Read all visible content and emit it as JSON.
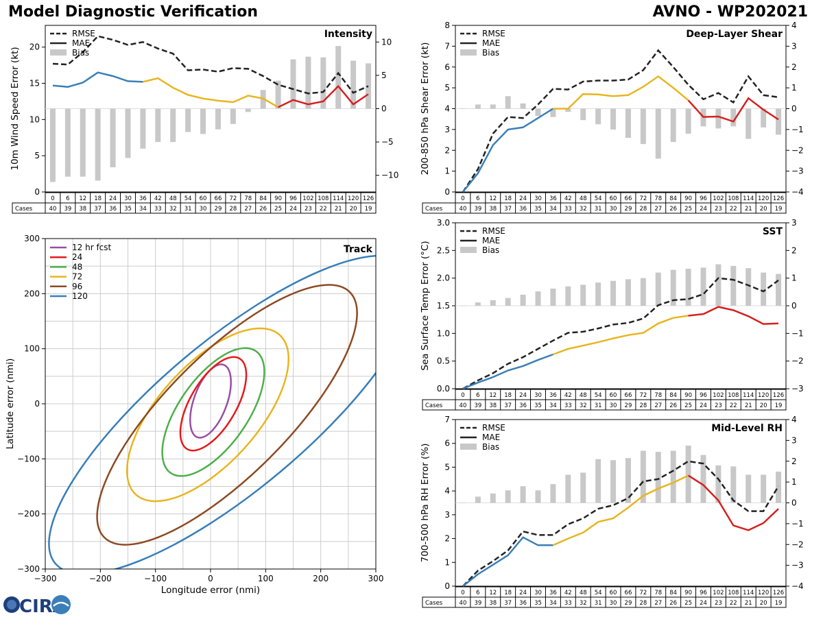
{
  "header": {
    "title": "Model Diagnostic Verification",
    "storm": "AVNO - WP202021"
  },
  "logo": {
    "text": "CIRA"
  },
  "colors": {
    "rmse": "#222222",
    "bias": "#c8c8c8",
    "mae_segments": [
      "#3a7fb7",
      "#e8b520",
      "#d62020"
    ],
    "track": [
      "#984ea3",
      "#e41a1c",
      "#4daf4a",
      "#e8b520",
      "#8c4a22",
      "#377eb8"
    ]
  },
  "cases_label": "Cases",
  "legend_labels": {
    "rmse": "RMSE",
    "mae": "MAE",
    "bias": "Bias"
  },
  "chart_data": [
    {
      "id": "intensity",
      "type": "line",
      "title": "Intensity",
      "ylabel": "10m Wind Speed Error (kt)",
      "ylim": [
        0,
        23
      ],
      "yticks": [
        0,
        5,
        10,
        15,
        20
      ],
      "y2lim": [
        -12.5,
        12.5
      ],
      "y2ticks": [
        -10,
        -5,
        0,
        5,
        10
      ],
      "y2ticklabels": [
        "−10",
        "−5",
        "0",
        "5",
        "10"
      ],
      "x": [
        0,
        6,
        12,
        18,
        24,
        30,
        36,
        42,
        48,
        54,
        60,
        66,
        72,
        78,
        84,
        90,
        96,
        102,
        108,
        114,
        120,
        126
      ],
      "cases": [
        40,
        39,
        38,
        37,
        36,
        35,
        34,
        33,
        32,
        31,
        30,
        29,
        28,
        27,
        26,
        25,
        24,
        23,
        22,
        21,
        20,
        19
      ],
      "series": [
        {
          "name": "RMSE",
          "values": [
            17.7,
            17.6,
            19.3,
            21.5,
            21.0,
            20.3,
            20.7,
            19.8,
            19.1,
            16.8,
            16.9,
            16.6,
            17.1,
            17.0,
            16.0,
            14.8,
            14.2,
            13.6,
            13.8,
            16.4,
            13.7,
            14.6
          ]
        },
        {
          "name": "MAE",
          "values": [
            14.7,
            14.5,
            15.1,
            16.5,
            16.0,
            15.3,
            15.2,
            15.7,
            14.4,
            13.4,
            12.9,
            12.6,
            12.4,
            13.3,
            12.9,
            11.7,
            12.7,
            12.1,
            12.5,
            14.6,
            12.1,
            13.5
          ],
          "color_breaks": [
            36,
            90
          ]
        },
        {
          "name": "Bias",
          "values": [
            -11.0,
            -10.2,
            -10.2,
            -10.8,
            -8.8,
            -7.4,
            -6.0,
            -5.0,
            -5.0,
            -3.5,
            -3.8,
            -3.1,
            -2.3,
            -0.5,
            2.8,
            4.2,
            7.4,
            7.8,
            7.7,
            9.4,
            7.2,
            6.8
          ]
        }
      ]
    },
    {
      "id": "shear",
      "type": "line",
      "title": "Deep-Layer Shear",
      "ylabel": "200-850 hPa Shear Error (kt)",
      "ylim": [
        0,
        8
      ],
      "yticks": [
        0,
        1,
        2,
        3,
        4,
        5,
        6,
        7,
        8
      ],
      "y2lim": [
        -4,
        4
      ],
      "y2ticks": [
        -4,
        -3,
        -2,
        -1,
        0,
        1,
        2,
        3,
        4
      ],
      "y2ticklabels": [
        "−4",
        "−3",
        "−2",
        "−1",
        "0",
        "1",
        "2",
        "3",
        "4"
      ],
      "x": [
        0,
        6,
        12,
        18,
        24,
        30,
        36,
        42,
        48,
        54,
        60,
        66,
        72,
        78,
        84,
        90,
        96,
        102,
        108,
        114,
        120,
        126
      ],
      "cases": [
        40,
        39,
        38,
        37,
        36,
        35,
        34,
        33,
        32,
        31,
        30,
        29,
        28,
        27,
        26,
        25,
        24,
        23,
        22,
        21,
        20,
        19
      ],
      "series": [
        {
          "name": "RMSE",
          "values": [
            0.0,
            1.1,
            2.8,
            3.6,
            3.55,
            4.2,
            4.95,
            4.92,
            5.3,
            5.35,
            5.35,
            5.4,
            5.85,
            6.8,
            6.0,
            5.15,
            4.45,
            4.75,
            4.3,
            5.55,
            4.65,
            4.55
          ]
        },
        {
          "name": "MAE",
          "values": [
            0.0,
            0.9,
            2.25,
            3.0,
            3.1,
            3.55,
            4.0,
            4.0,
            4.7,
            4.68,
            4.6,
            4.65,
            5.05,
            5.55,
            5.0,
            4.4,
            3.6,
            3.62,
            3.38,
            4.5,
            3.95,
            3.48
          ],
          "color_breaks": [
            36,
            90
          ]
        },
        {
          "name": "Bias",
          "values": [
            0,
            0.2,
            0.2,
            0.6,
            0.25,
            -0.35,
            -0.4,
            -0.15,
            -0.55,
            -0.75,
            -1.0,
            -1.4,
            -1.7,
            -2.4,
            -1.6,
            -1.2,
            -0.85,
            -0.95,
            -0.85,
            -1.45,
            -0.9,
            -1.25
          ]
        }
      ]
    },
    {
      "id": "sst",
      "type": "line",
      "title": "SST",
      "ylabel": "Sea Surface Temp Error (°C)",
      "ylim": [
        0,
        3
      ],
      "yticks": [
        0.0,
        0.5,
        1.0,
        1.5,
        2.0,
        2.5,
        3.0
      ],
      "yticklabels": [
        "0.0",
        "0.5",
        "1.0",
        "1.5",
        "2.0",
        "2.5",
        "3.0"
      ],
      "y2lim": [
        -3,
        3
      ],
      "y2ticks": [
        -3,
        -2,
        -1,
        0,
        1,
        2,
        3
      ],
      "y2ticklabels": [
        "−3",
        "−2",
        "−1",
        "0",
        "1",
        "2",
        "3"
      ],
      "x": [
        0,
        6,
        12,
        18,
        24,
        30,
        36,
        42,
        48,
        54,
        60,
        66,
        72,
        78,
        84,
        90,
        96,
        102,
        108,
        114,
        120,
        126
      ],
      "cases": [
        40,
        39,
        38,
        37,
        36,
        35,
        34,
        33,
        32,
        31,
        30,
        29,
        28,
        27,
        26,
        25,
        24,
        23,
        22,
        21,
        20,
        19
      ],
      "series": [
        {
          "name": "RMSE",
          "values": [
            0.0,
            0.15,
            0.28,
            0.45,
            0.57,
            0.72,
            0.87,
            1.01,
            1.03,
            1.09,
            1.16,
            1.19,
            1.27,
            1.51,
            1.6,
            1.62,
            1.71,
            2.0,
            1.97,
            1.87,
            1.76,
            1.96
          ]
        },
        {
          "name": "MAE",
          "values": [
            0.0,
            0.11,
            0.21,
            0.33,
            0.41,
            0.52,
            0.62,
            0.72,
            0.78,
            0.84,
            0.91,
            0.97,
            1.01,
            1.18,
            1.28,
            1.32,
            1.35,
            1.48,
            1.42,
            1.31,
            1.17,
            1.18
          ],
          "color_breaks": [
            36,
            90
          ]
        },
        {
          "name": "Bias",
          "values": [
            0,
            0.12,
            0.2,
            0.28,
            0.4,
            0.52,
            0.62,
            0.7,
            0.76,
            0.84,
            0.9,
            0.96,
            1.0,
            1.2,
            1.3,
            1.34,
            1.38,
            1.5,
            1.44,
            1.36,
            1.2,
            1.15
          ]
        }
      ]
    },
    {
      "id": "rh",
      "type": "line",
      "title": "Mid-Level RH",
      "ylabel": "700-500 hPa RH Error (%)",
      "ylim": [
        0,
        7
      ],
      "yticks": [
        0,
        1,
        2,
        3,
        4,
        5,
        6,
        7
      ],
      "y2lim": [
        -4,
        4
      ],
      "y2ticks": [
        -4,
        -3,
        -2,
        -1,
        0,
        1,
        2,
        3,
        4
      ],
      "y2ticklabels": [
        "−4",
        "−3",
        "−2",
        "−1",
        "0",
        "1",
        "2",
        "3",
        "4"
      ],
      "x": [
        0,
        6,
        12,
        18,
        24,
        30,
        36,
        42,
        48,
        54,
        60,
        66,
        72,
        78,
        84,
        90,
        96,
        102,
        108,
        114,
        120,
        126
      ],
      "cases": [
        40,
        39,
        38,
        37,
        36,
        35,
        34,
        33,
        32,
        31,
        30,
        29,
        28,
        27,
        26,
        25,
        24,
        23,
        22,
        21,
        20,
        19
      ],
      "series": [
        {
          "name": "RMSE",
          "values": [
            0.0,
            0.65,
            1.05,
            1.5,
            2.3,
            2.15,
            2.15,
            2.6,
            2.85,
            3.25,
            3.4,
            3.7,
            4.4,
            4.5,
            4.85,
            5.25,
            5.15,
            4.5,
            3.6,
            3.15,
            3.15,
            4.2
          ]
        },
        {
          "name": "MAE",
          "values": [
            0.0,
            0.5,
            0.9,
            1.3,
            2.05,
            1.72,
            1.72,
            2.0,
            2.25,
            2.7,
            2.85,
            3.3,
            3.8,
            4.1,
            4.35,
            4.65,
            4.25,
            3.6,
            2.55,
            2.35,
            2.65,
            3.25
          ],
          "color_breaks": [
            36,
            90
          ]
        },
        {
          "name": "Bias",
          "values": [
            0,
            0.3,
            0.45,
            0.6,
            0.8,
            0.6,
            0.9,
            1.35,
            1.45,
            2.1,
            2.05,
            2.15,
            2.5,
            2.45,
            2.5,
            2.75,
            2.3,
            1.8,
            1.75,
            1.35,
            1.35,
            1.5
          ]
        }
      ]
    },
    {
      "id": "track",
      "type": "scatter",
      "title": "Track",
      "xlabel": "Longitude error (nmi)",
      "ylabel": "Latitude error (nmi)",
      "xlim": [
        -300,
        300
      ],
      "ylim": [
        -300,
        300
      ],
      "xticks": [
        -300,
        -200,
        -100,
        0,
        100,
        200,
        300
      ],
      "yticks": [
        -300,
        -200,
        -100,
        0,
        100,
        200,
        300
      ],
      "xticklabels": [
        "−300",
        "−200",
        "−100",
        "0",
        "100",
        "200",
        "300"
      ],
      "yticklabels": [
        "−300",
        "−200",
        "−100",
        "0",
        "100",
        "200",
        "300"
      ],
      "grid": true,
      "ellipses": [
        {
          "label": "12 hr fcst",
          "cx": 0,
          "cy": 5,
          "a": 70,
          "b": 30,
          "angle_deg": 70
        },
        {
          "label": "24",
          "cx": 5,
          "cy": 0,
          "a": 95,
          "b": 42,
          "angle_deg": 60
        },
        {
          "label": "48",
          "cx": 5,
          "cy": -15,
          "a": 135,
          "b": 62,
          "angle_deg": 55
        },
        {
          "label": "72",
          "cx": -5,
          "cy": -20,
          "a": 195,
          "b": 90,
          "angle_deg": 48
        },
        {
          "label": "96",
          "cx": 30,
          "cy": -20,
          "a": 315,
          "b": 110,
          "angle_deg": 45
        },
        {
          "label": "120",
          "cx": 40,
          "cy": -20,
          "a": 420,
          "b": 135,
          "angle_deg": 40
        }
      ]
    }
  ]
}
